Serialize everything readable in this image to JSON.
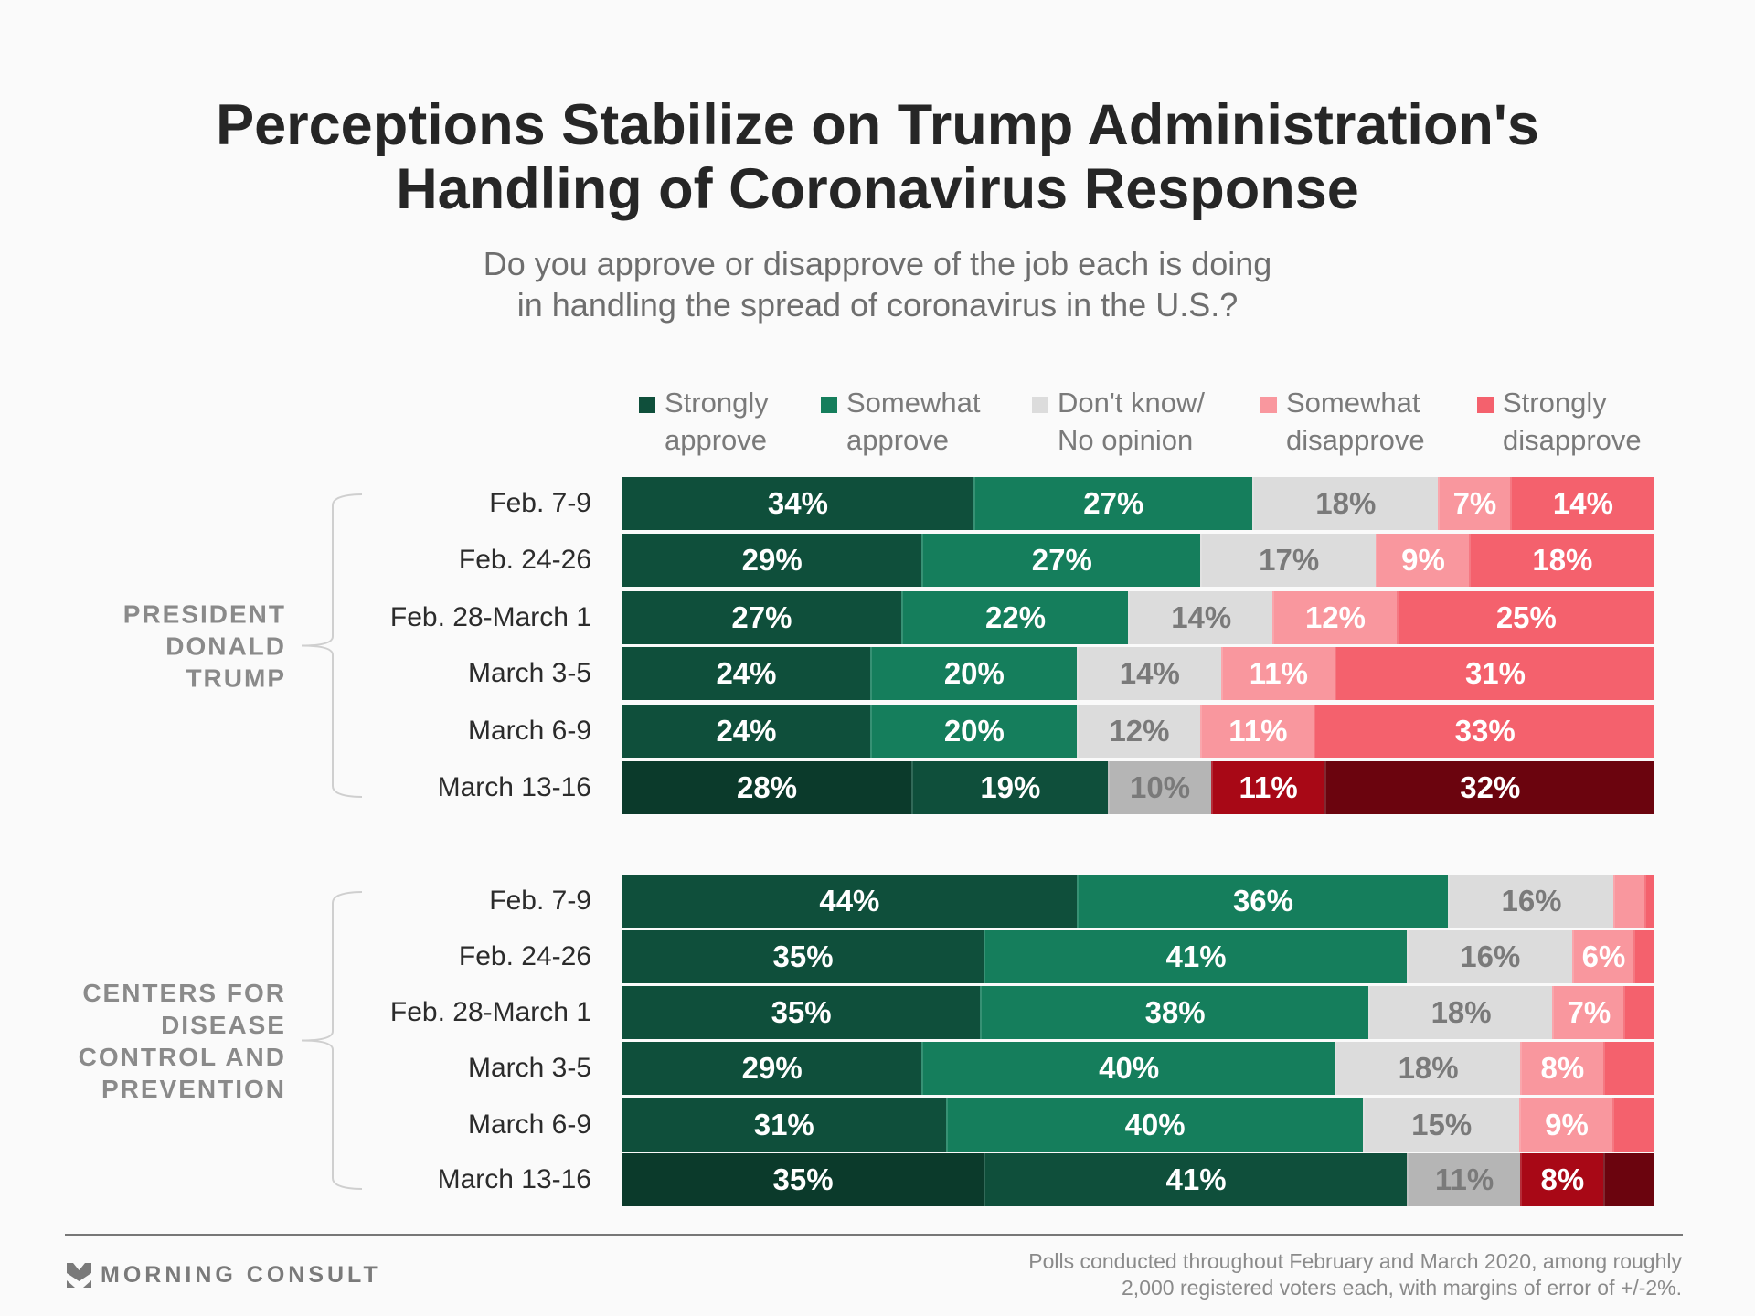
{
  "chart_data": {
    "type": "bar",
    "orientation": "horizontal-stacked-100",
    "title": "Perceptions Stabilize on Trump Administration's Handling of Coronavirus Response",
    "title_lines": [
      "Perceptions Stabilize on Trump Administration's",
      "Handling of Coronavirus Response"
    ],
    "subtitle_lines": [
      "Do you approve or disapprove of the job each is doing",
      "in handling the spread of coronavirus in the U.S.?"
    ],
    "legend": [
      {
        "label": "Strongly\napprove",
        "color": "#0f4f3b"
      },
      {
        "label": "Somewhat\napprove",
        "color": "#157e5c"
      },
      {
        "label": "Don't know/\nNo opinion",
        "color": "#dcdcdc"
      },
      {
        "label": "Somewhat\ndisapprove",
        "color": "#f9979e"
      },
      {
        "label": "Strongly\ndisapprove",
        "color": "#f4616d"
      }
    ],
    "highlight_colors": [
      "#0b3a2b",
      "#0f4f3b",
      "#b5b5b5",
      "#a80816",
      "#6b040e"
    ],
    "groups": [
      {
        "label": "PRESIDENT\nDONALD\nTRUMP",
        "rows": [
          {
            "category": "Feb. 7-9",
            "values": [
              34,
              27,
              18,
              7,
              14
            ],
            "labels": [
              "34%",
              "27%",
              "18%",
              "7%",
              "14%"
            ]
          },
          {
            "category": "Feb. 24-26",
            "values": [
              29,
              27,
              17,
              9,
              18
            ],
            "labels": [
              "29%",
              "27%",
              "17%",
              "9%",
              "18%"
            ]
          },
          {
            "category": "Feb. 28-March 1",
            "values": [
              27,
              22,
              14,
              12,
              25
            ],
            "labels": [
              "27%",
              "22%",
              "14%",
              "12%",
              "25%"
            ]
          },
          {
            "category": "March 3-5",
            "values": [
              24,
              20,
              14,
              11,
              31
            ],
            "labels": [
              "24%",
              "20%",
              "14%",
              "11%",
              "31%"
            ]
          },
          {
            "category": "March 6-9",
            "values": [
              24,
              20,
              12,
              11,
              33
            ],
            "labels": [
              "24%",
              "20%",
              "12%",
              "11%",
              "33%"
            ]
          },
          {
            "category": "March 13-16",
            "values": [
              28,
              19,
              10,
              11,
              32
            ],
            "labels": [
              "28%",
              "19%",
              "10%",
              "11%",
              "32%"
            ],
            "highlight": true
          }
        ]
      },
      {
        "label": "CENTERS FOR\nDISEASE\nCONTROL AND\nPREVENTION",
        "rows": [
          {
            "category": "Feb. 7-9",
            "values": [
              44,
              36,
              16,
              3,
              1
            ],
            "labels": [
              "44%",
              "36%",
              "16%",
              "",
              ""
            ]
          },
          {
            "category": "Feb. 24-26",
            "values": [
              35,
              41,
              16,
              6,
              2
            ],
            "labels": [
              "35%",
              "41%",
              "16%",
              "6%",
              ""
            ]
          },
          {
            "category": "Feb. 28-March 1",
            "values": [
              35,
              38,
              18,
              7,
              3
            ],
            "labels": [
              "35%",
              "38%",
              "18%",
              "7%",
              ""
            ]
          },
          {
            "category": "March 3-5",
            "values": [
              29,
              40,
              18,
              8,
              5
            ],
            "labels": [
              "29%",
              "40%",
              "18%",
              "8%",
              ""
            ]
          },
          {
            "category": "March 6-9",
            "values": [
              31,
              40,
              15,
              9,
              4
            ],
            "labels": [
              "31%",
              "40%",
              "15%",
              "9%",
              ""
            ]
          },
          {
            "category": "March 13-16",
            "values": [
              35,
              41,
              11,
              8,
              5
            ],
            "labels": [
              "35%",
              "41%",
              "11%",
              "8%",
              ""
            ],
            "highlight": true
          }
        ]
      }
    ],
    "xlim": [
      0,
      100
    ]
  },
  "footer": {
    "brand": "MORNING CONSULT",
    "note_lines": [
      "Polls conducted throughout February and March 2020, among roughly",
      "2,000 registered voters each, with margins of error of +/-2%."
    ]
  }
}
